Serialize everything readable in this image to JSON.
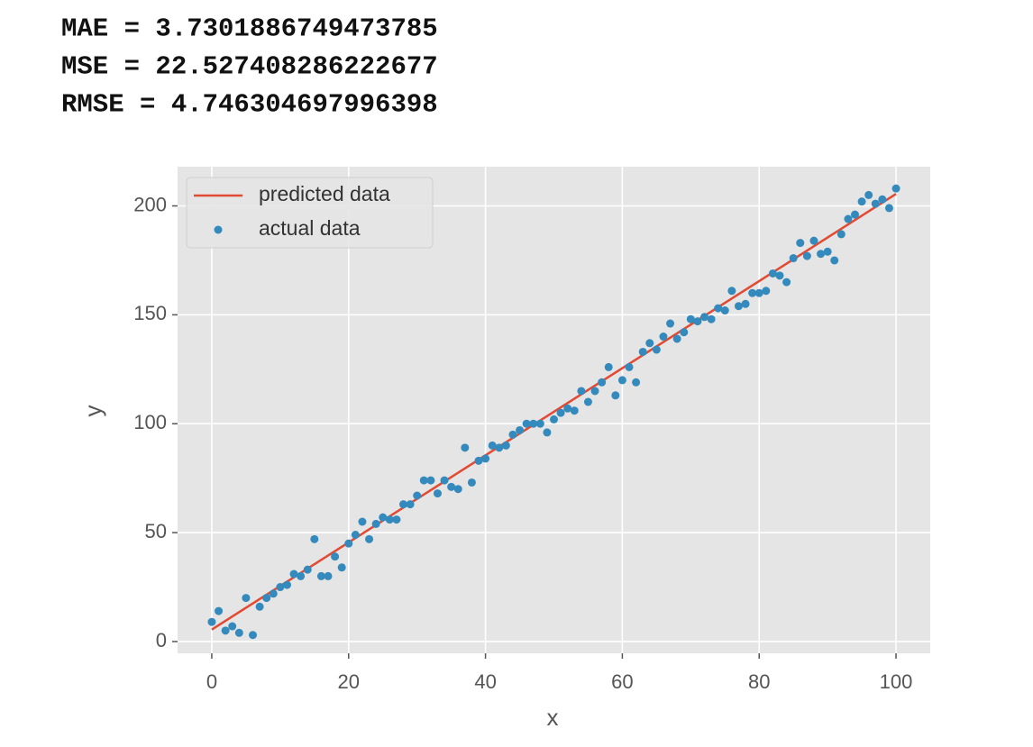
{
  "output_lines": [
    "MAE = 3.7301886749473785",
    "MSE = 22.527408286222677",
    "RMSE = 4.746304697996398"
  ],
  "chart_data": {
    "type": "scatter",
    "xlabel": "x",
    "ylabel": "y",
    "xlim": [
      -5,
      105
    ],
    "ylim": [
      -5.4,
      218
    ],
    "xticks": [
      0,
      20,
      40,
      60,
      80,
      100
    ],
    "yticks": [
      0,
      50,
      100,
      150,
      200
    ],
    "grid": true,
    "legend": "upper left",
    "series": [
      {
        "name": "predicted data",
        "type": "line",
        "color": "#e24a33",
        "x": [
          0,
          100
        ],
        "values": [
          5.5,
          205.5
        ]
      },
      {
        "name": "actual data",
        "type": "scatter",
        "color": "#348abd",
        "x": [
          0,
          1,
          2,
          3,
          4,
          5,
          6,
          7,
          8,
          9,
          10,
          11,
          12,
          13,
          14,
          15,
          16,
          17,
          18,
          19,
          20,
          21,
          22,
          23,
          24,
          25,
          26,
          27,
          28,
          29,
          30,
          31,
          32,
          33,
          34,
          35,
          36,
          37,
          38,
          39,
          40,
          41,
          42,
          43,
          44,
          45,
          46,
          47,
          48,
          49,
          50,
          51,
          52,
          53,
          54,
          55,
          56,
          57,
          58,
          59,
          60,
          61,
          62,
          63,
          64,
          65,
          66,
          67,
          68,
          69,
          70,
          71,
          72,
          73,
          74,
          75,
          76,
          77,
          78,
          79,
          80,
          81,
          82,
          83,
          84,
          85,
          86,
          87,
          88,
          89,
          90,
          91,
          92,
          93,
          94,
          95,
          96,
          97,
          98,
          99,
          100
        ],
        "values": [
          9,
          14,
          5,
          7,
          4,
          20,
          3,
          16,
          20,
          22,
          25,
          26,
          31,
          30,
          33,
          47,
          30,
          30,
          39,
          34,
          45,
          49,
          55,
          47,
          54,
          57,
          56,
          56,
          63,
          63,
          67,
          74,
          74,
          68,
          74,
          71,
          70,
          89,
          73,
          83,
          84,
          90,
          89,
          90,
          95,
          97,
          100,
          100,
          100,
          96,
          102,
          105,
          107,
          106,
          115,
          110,
          115,
          119,
          126,
          113,
          120,
          126,
          119,
          133,
          137,
          134,
          140,
          146,
          139,
          142,
          148,
          147,
          149,
          148,
          153,
          152,
          161,
          154,
          155,
          160,
          160,
          161,
          169,
          168,
          165,
          176,
          183,
          177,
          184,
          178,
          179,
          175,
          187,
          194,
          196,
          202,
          205,
          201,
          203,
          199,
          208
        ]
      }
    ]
  }
}
